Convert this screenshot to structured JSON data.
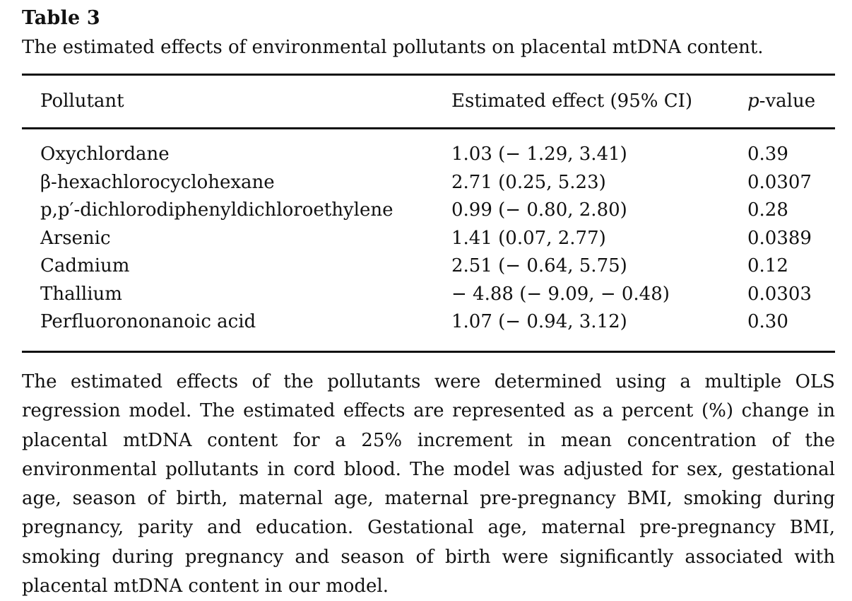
{
  "table_label": "Table 3",
  "caption": "The estimated effects of environmental pollutants on placental mtDNA content.",
  "headers": {
    "pollutant": "Pollutant",
    "effect": "Estimated effect (95% CI)",
    "p_italic": "p",
    "p_rest": "-value"
  },
  "rows": [
    {
      "pollutant": "Oxychlordane",
      "effect": "1.03 (− 1.29, 3.41)",
      "p": "0.39"
    },
    {
      "pollutant": "β-hexachlorocyclohexane",
      "effect": "2.71 (0.25, 5.23)",
      "p": "0.0307"
    },
    {
      "pollutant": "p,p′-dichlorodiphenyldichloroethylene",
      "effect": "0.99 (− 0.80, 2.80)",
      "p": "0.28"
    },
    {
      "pollutant": "Arsenic",
      "effect": "1.41 (0.07, 2.77)",
      "p": "0.0389"
    },
    {
      "pollutant": "Cadmium",
      "effect": "2.51 (− 0.64, 5.75)",
      "p": "0.12"
    },
    {
      "pollutant": "Thallium",
      "effect": "− 4.88 (− 9.09, − 0.48)",
      "p": "0.0303"
    },
    {
      "pollutant": "Perfluorononanoic acid",
      "effect": "1.07 (− 0.94, 3.12)",
      "p": "0.30"
    }
  ],
  "footnote": "The estimated effects of the pollutants were determined using a multiple OLS regression model. The estimated effects are represented as a percent (%) change in placental mtDNA content for a 25% increment in mean concentration of the environmental pollutants in cord blood. The model was adjusted for sex, gestational age, season of birth, maternal age, maternal pre-pregnancy BMI, smoking during pregnancy, parity and education. Gestational age, maternal pre-pregnancy BMI, smoking during pregnancy and season of birth were significantly associated with placental mtDNA content in our model."
}
